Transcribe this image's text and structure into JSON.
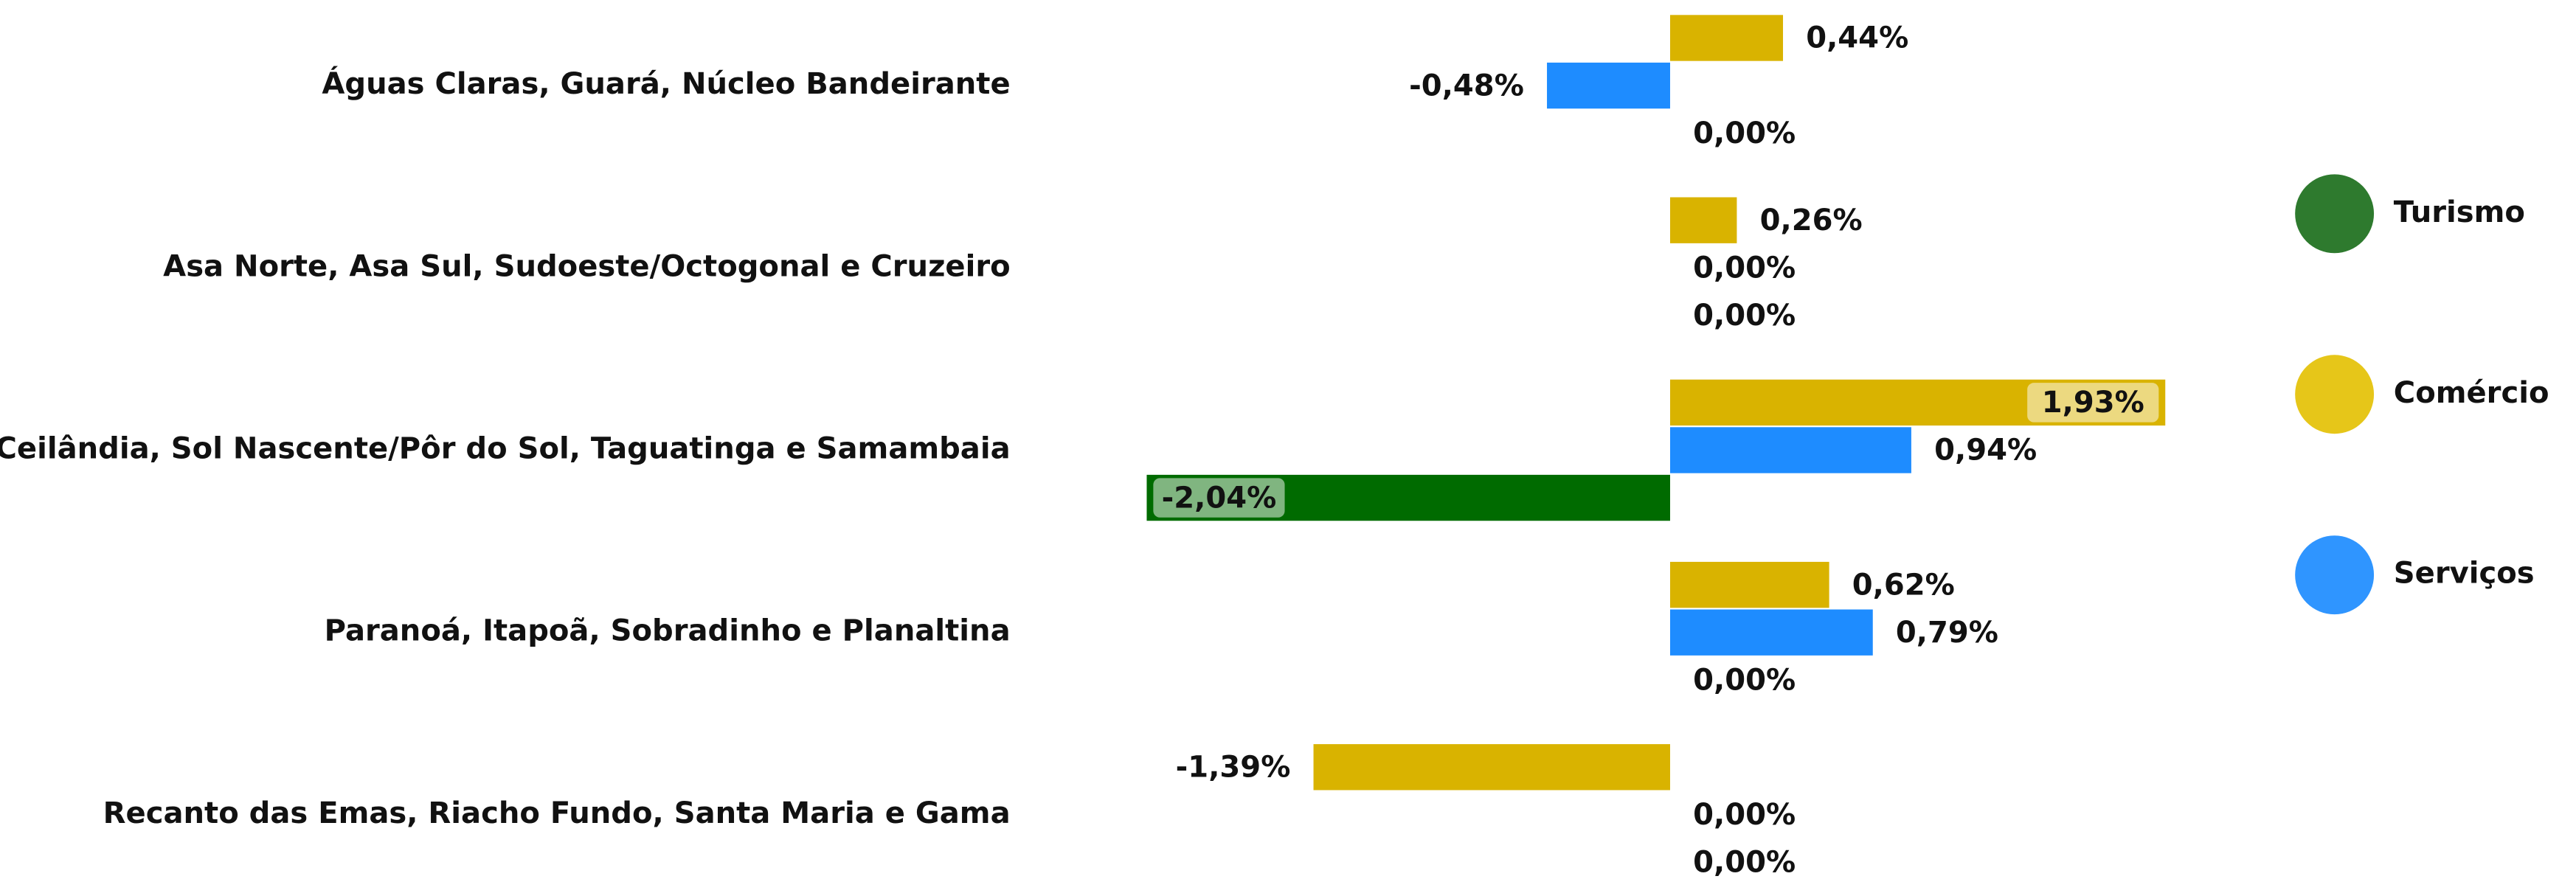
{
  "chart_data": {
    "type": "bar",
    "orientation": "horizontal",
    "categories": [
      "Águas Claras, Guará, Núcleo Bandeirante",
      "Asa Norte, Asa Sul, Sudoeste/Octogonal e Cruzeiro",
      "Ceilândia, Sol Nascente/Pôr do Sol, Taguatinga e Samambaia",
      "Paranoá, Itapoã, Sobradinho e Planaltina",
      "Recanto das Emas, Riacho Fundo, Santa Maria e Gama"
    ],
    "series": [
      {
        "name": "Comércio",
        "color": "#d9b300",
        "legend_color": "#e6c619",
        "values": [
          0.44,
          0.26,
          1.93,
          0.62,
          -1.39
        ],
        "value_labels": [
          "0,44%",
          "0,26%",
          "1,93%",
          "0,62%",
          "-1,39%"
        ]
      },
      {
        "name": "Serviços",
        "color": "#1e8cff",
        "legend_color": "#2f95ff",
        "values": [
          -0.48,
          0,
          0.94,
          0.79,
          0
        ],
        "value_labels": [
          "-0,48%",
          "0,00%",
          "0,94%",
          "0,79%",
          "0,00%"
        ]
      },
      {
        "name": "Turismo",
        "color": "#006b00",
        "legend_color": "#2e7a2e",
        "values": [
          0,
          0,
          -2.04,
          0,
          0
        ],
        "value_labels": [
          "0,00%",
          "0,00%",
          "-2,04%",
          "0,00%",
          "0,00%"
        ]
      }
    ],
    "legend_order": [
      "Turismo",
      "Comércio",
      "Serviços"
    ]
  }
}
